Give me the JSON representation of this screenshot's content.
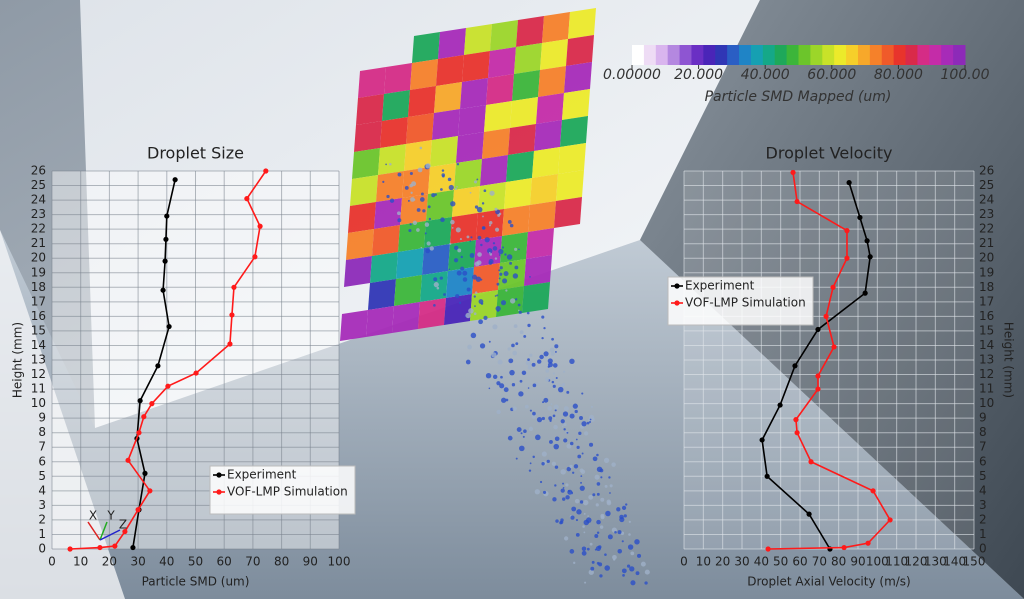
{
  "colorbar": {
    "title": "Particle SMD Mapped (um)",
    "lim": [
      0,
      100
    ],
    "ticks": [
      {
        "value": 0,
        "label": "0.00000"
      },
      {
        "value": 20,
        "label": "20.000"
      },
      {
        "value": 40,
        "label": "40.000"
      },
      {
        "value": 60,
        "label": "60.000"
      },
      {
        "value": 80,
        "label": "80.000"
      },
      {
        "value": 100,
        "label": "100.00"
      }
    ],
    "colors": [
      "#ffffff",
      "#eedcf5",
      "#d9b5ee",
      "#b488e0",
      "#8e55d2",
      "#6a2fc4",
      "#4a25b8",
      "#3036b5",
      "#2a5ec4",
      "#1f84c6",
      "#16a0b2",
      "#15a888",
      "#1ea85a",
      "#3cb53a",
      "#6cc52b",
      "#9cd629",
      "#c8e229",
      "#ecea2a",
      "#f6cf2a",
      "#f7a82a",
      "#f5812a",
      "#f05a2a",
      "#e8342c",
      "#d92a4a",
      "#d52c86",
      "#c42ca8",
      "#a72bb8",
      "#8d2ab8"
    ]
  },
  "axes_triad": [
    "X",
    "Y",
    "Z"
  ],
  "chart_data": [
    {
      "type": "line",
      "title": "Droplet Size",
      "x_label": "Particle SMD (um)",
      "y_label": "Height (mm)",
      "xlim": [
        0,
        100
      ],
      "xticks": [
        0,
        10,
        20,
        30,
        40,
        50,
        60,
        70,
        80,
        90,
        100
      ],
      "ylim": [
        0,
        26
      ],
      "yticks": [
        0,
        1,
        2,
        3,
        4,
        5,
        6,
        7,
        8,
        9,
        10,
        11,
        12,
        13,
        14,
        15,
        16,
        17,
        18,
        19,
        20,
        21,
        22,
        23,
        24,
        25,
        26
      ],
      "grid": true,
      "y_axis_side": "left",
      "legend": "lower right",
      "series": [
        {
          "name": "Experiment",
          "color": "#000000",
          "x": [
            42.9,
            40,
            39.7,
            39.4,
            38.7,
            40.8,
            36.9,
            30.7,
            29.6,
            32.4,
            30.3,
            28.2
          ],
          "y": [
            25.4,
            22.9,
            21.3,
            19.8,
            17.8,
            15.3,
            12.6,
            10.2,
            7.6,
            5.2,
            2.7,
            0.1
          ]
        },
        {
          "name": "VOF-LMP Simulation",
          "color": "#ff1a1a",
          "x": [
            74.5,
            67.9,
            72.5,
            70.7,
            63.4,
            62.7,
            62,
            50.2,
            40.4,
            34.8,
            32,
            30.3,
            26.5,
            34.1,
            30,
            25.4,
            21.9,
            16.7,
            6.3
          ],
          "y": [
            26,
            24.1,
            22.2,
            20.1,
            18,
            16.1,
            14.1,
            12.1,
            11.2,
            10,
            9.1,
            8,
            6.1,
            4,
            2.7,
            1.2,
            0.2,
            0.1,
            0
          ]
        }
      ]
    },
    {
      "type": "line",
      "title": "Droplet Velocity",
      "x_label": "Droplet Axial Velocity (m/s)",
      "y_label": "Height (mm)",
      "xlim": [
        0,
        150
      ],
      "xticks": [
        0,
        10,
        20,
        30,
        40,
        50,
        60,
        70,
        80,
        90,
        100,
        110,
        120,
        130,
        140,
        150
      ],
      "ylim": [
        0,
        26
      ],
      "yticks": [
        0,
        1,
        2,
        3,
        4,
        5,
        6,
        7,
        8,
        9,
        10,
        11,
        12,
        13,
        14,
        15,
        16,
        17,
        18,
        19,
        20,
        21,
        22,
        23,
        24,
        25,
        26
      ],
      "grid": true,
      "y_axis_side": "right",
      "legend": "upper left",
      "series": [
        {
          "name": "Experiment",
          "color": "#000000",
          "x": [
            85.4,
            91,
            94.7,
            96.3,
            93.7,
            69.3,
            57.4,
            49.7,
            40.4,
            43,
            64.7,
            75.5
          ],
          "y": [
            25.2,
            22.8,
            21.2,
            20.1,
            17.6,
            15.1,
            12.6,
            9.9,
            7.5,
            5,
            2.4,
            0
          ]
        },
        {
          "name": "VOF-LMP Simulation",
          "color": "#ff1a1a",
          "x": [
            56.4,
            58.5,
            84.3,
            84.3,
            77.1,
            73.5,
            77.6,
            69.3,
            69.3,
            57.9,
            58.5,
            65.7,
            97.8,
            106.6,
            95.2,
            82.8,
            43.5
          ],
          "y": [
            25.9,
            23.9,
            21.9,
            20,
            18,
            16,
            13.9,
            11.9,
            11,
            8.9,
            8,
            6,
            4,
            2,
            0.4,
            0.1,
            0
          ]
        }
      ]
    }
  ]
}
